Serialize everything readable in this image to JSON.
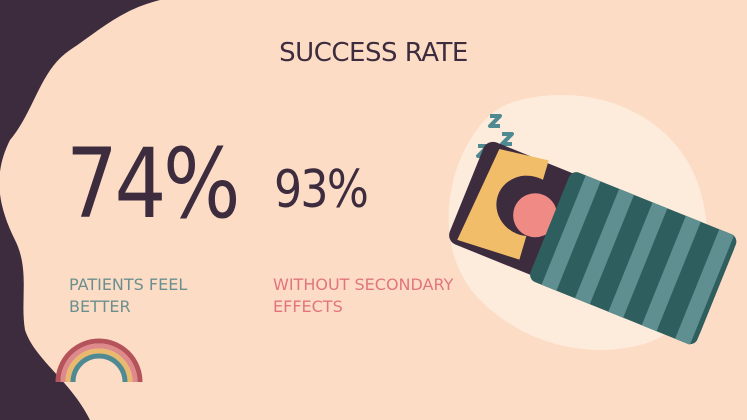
{
  "slide": {
    "title": "SUCCESS RATE",
    "stats": [
      {
        "value": "74%",
        "caption_line1": "PATIENTS FEEL",
        "caption_line2": "BETTER"
      },
      {
        "value": "93%",
        "caption_line1": "WITHOUT SECONDARY",
        "caption_line2": "EFFECTS"
      }
    ]
  },
  "colors": {
    "background": "#fcdcc5",
    "dark": "#3d2c3e",
    "teal": "#6b8f8f",
    "pink": "#e2757b",
    "blanket": "#2f5e5e"
  },
  "icons": [
    "rainbow-illustration",
    "sleeping-person-illustration",
    "zzz-icon"
  ]
}
